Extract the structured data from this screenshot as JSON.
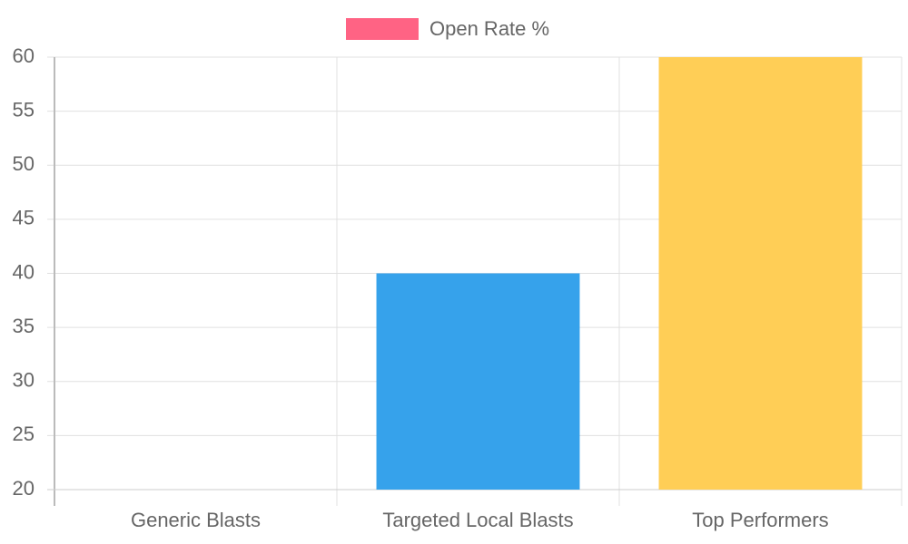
{
  "chart_data": {
    "type": "bar",
    "categories": [
      "Generic Blasts",
      "Targeted Local Blasts",
      "Top Performers"
    ],
    "series": [
      {
        "name": "Open Rate %",
        "colors": [
          "#ff6384",
          "#36a2eb",
          "#ffce56"
        ],
        "values": [
          20,
          40,
          60
        ]
      }
    ],
    "ylim": [
      20,
      60
    ],
    "yticks": [
      20,
      25,
      30,
      35,
      40,
      45,
      50,
      55,
      60
    ],
    "grid": true,
    "legend": "top"
  }
}
